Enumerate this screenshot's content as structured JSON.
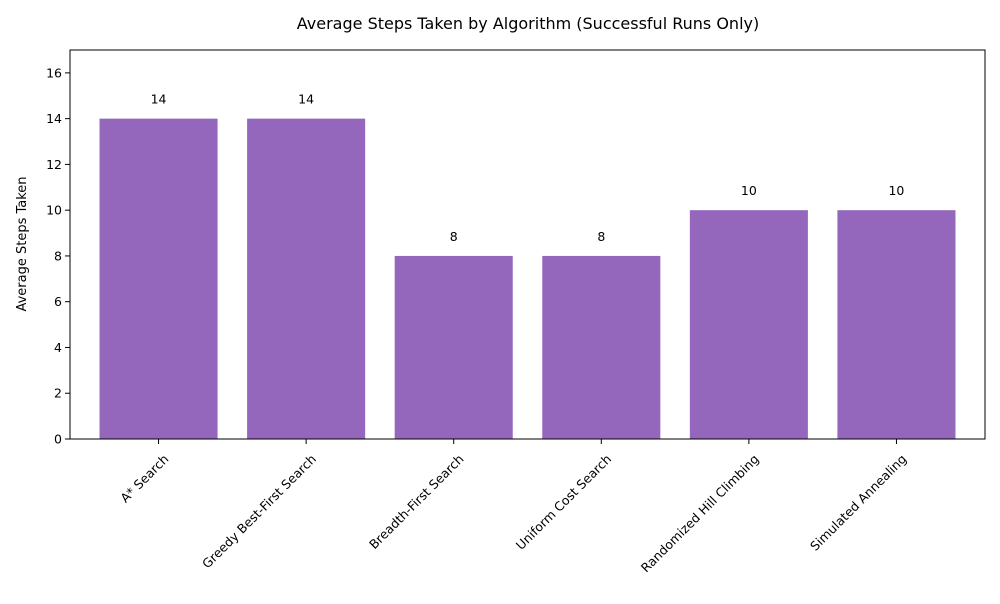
{
  "chart_data": {
    "type": "bar",
    "title": "Average Steps Taken by Algorithm (Successful Runs Only)",
    "xlabel": "",
    "ylabel": "Average Steps Taken",
    "categories": [
      "A* Search",
      "Greedy Best-First Search",
      "Breadth-First Search",
      "Uniform Cost Search",
      "Randomized Hill Climbing",
      "Simulated Annealing"
    ],
    "values": [
      14,
      14,
      8,
      8,
      10,
      10
    ],
    "data_labels": [
      "14",
      "14",
      "8",
      "8",
      "10",
      "10"
    ],
    "ylim": [
      0,
      17
    ],
    "yticks": [
      0,
      2,
      4,
      6,
      8,
      10,
      12,
      14,
      16
    ],
    "bar_color": "#9467bd",
    "grid": false,
    "legend": "none"
  }
}
